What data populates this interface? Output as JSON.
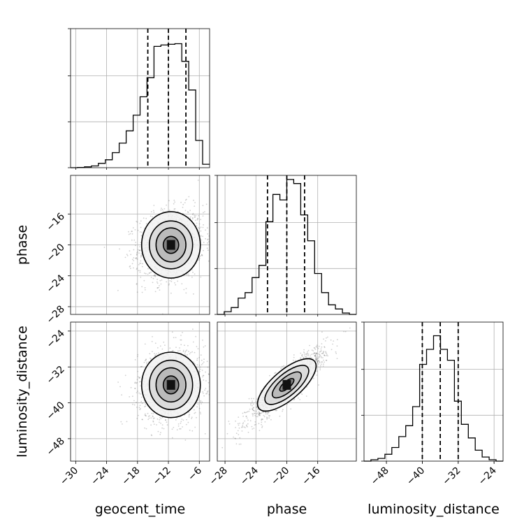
{
  "chart_data": {
    "type": "corner",
    "parameters": [
      {
        "name": "geocent_time",
        "range": [
          -31,
          -4
        ],
        "ticks": [
          -30,
          -24,
          -18,
          -12,
          -6
        ]
      },
      {
        "name": "phase",
        "range": [
          -29,
          -11
        ],
        "ticks": [
          -28,
          -24,
          -20,
          -16
        ]
      },
      {
        "name": "luminosity_distance",
        "range": [
          -53,
          -22
        ],
        "ticks": [
          -48,
          -40,
          -32,
          -24
        ]
      }
    ],
    "quantiles": [
      [
        -16.0,
        -12.0,
        -8.6
      ],
      [
        -22.5,
        -20.0,
        -17.7
      ],
      [
        -40.0,
        -36.0,
        -32.0
      ]
    ],
    "histograms": [
      {
        "parameter": "geocent_time",
        "edges": [
          -31.0,
          -29.65,
          -28.3,
          -26.95,
          -25.6,
          -24.25,
          -22.9,
          -21.55,
          -20.2,
          -18.85,
          -17.5,
          -16.15,
          -14.8,
          -13.45,
          -12.1,
          -10.75,
          -9.4,
          -8.05,
          -6.7,
          -5.35,
          -4.0
        ],
        "counts": [
          0,
          0.002,
          0.006,
          0.013,
          0.032,
          0.058,
          0.11,
          0.18,
          0.27,
          0.385,
          0.52,
          0.66,
          0.89,
          0.9,
          0.905,
          0.91,
          0.78,
          0.57,
          0.2,
          0.025
        ]
      },
      {
        "parameter": "phase",
        "edges": [
          -29.0,
          -28.1,
          -27.2,
          -26.3,
          -25.4,
          -24.5,
          -23.6,
          -22.7,
          -21.8,
          -20.9,
          -20.0,
          -19.1,
          -18.2,
          -17.3,
          -16.4,
          -15.5,
          -14.6,
          -13.7,
          -12.8,
          -11.9,
          -11.0
        ],
        "counts": [
          0,
          0.02,
          0.05,
          0.12,
          0.16,
          0.27,
          0.36,
          0.68,
          0.88,
          0.84,
          0.99,
          0.96,
          0.73,
          0.54,
          0.3,
          0.16,
          0.07,
          0.04,
          0.01,
          0
        ]
      },
      {
        "parameter": "luminosity_distance",
        "edges": [
          -53.0,
          -51.45,
          -49.9,
          -48.35,
          -46.8,
          -45.25,
          -43.7,
          -42.15,
          -40.6,
          -39.05,
          -37.5,
          -35.95,
          -34.4,
          -32.85,
          -31.3,
          -29.75,
          -28.2,
          -26.65,
          -25.1,
          -23.55,
          -22.0
        ],
        "counts": [
          0,
          0.01,
          0.02,
          0.05,
          0.1,
          0.18,
          0.26,
          0.4,
          0.71,
          0.82,
          0.92,
          0.82,
          0.74,
          0.44,
          0.27,
          0.17,
          0.08,
          0.03,
          0.01,
          0
        ]
      }
    ],
    "pairs": [
      {
        "x": "geocent_time",
        "y": "phase",
        "center": [
          -11.5,
          -20.0
        ],
        "sd": [
          3.2,
          2.3
        ],
        "corr": 0.15,
        "contours": [
          {
            "sd": [
              1.5,
              1.1
            ]
          },
          {
            "sd": [
              2.9,
              2.2
            ]
          },
          {
            "sd": [
              4.2,
              3.1
            ]
          },
          {
            "sd": [
              5.7,
              4.3
            ]
          }
        ]
      },
      {
        "x": "geocent_time",
        "y": "luminosity_distance",
        "center": [
          -11.5,
          -36.0
        ],
        "sd": [
          3.2,
          4.1
        ],
        "corr": 0.1,
        "contours": [
          {
            "sd": [
              1.5,
              2.0
            ]
          },
          {
            "sd": [
              2.9,
              3.8
            ]
          },
          {
            "sd": [
              4.2,
              5.5
            ]
          },
          {
            "sd": [
              5.7,
              7.3
            ]
          }
        ]
      },
      {
        "x": "phase",
        "y": "luminosity_distance",
        "center": [
          -20.0,
          -36.0
        ],
        "sd": [
          2.5,
          4.1
        ],
        "corr": 0.9,
        "contours": [
          {
            "sd": [
              0.9,
              1.4
            ]
          },
          {
            "sd": [
              1.8,
              2.9
            ]
          },
          {
            "sd": [
              2.7,
              4.4
            ]
          },
          {
            "sd": [
              3.6,
              5.9
            ]
          }
        ]
      }
    ],
    "grid": true
  }
}
